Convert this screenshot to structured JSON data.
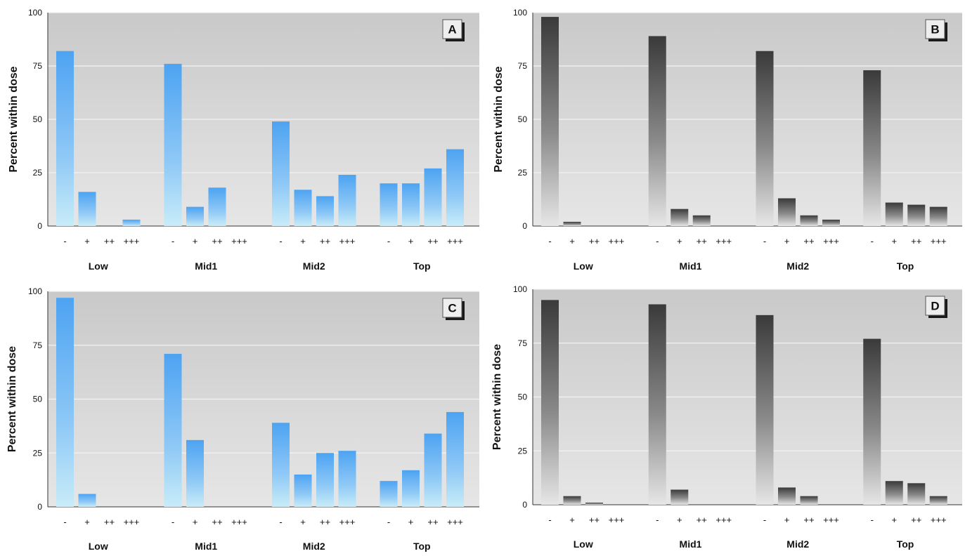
{
  "chart_data": [
    {
      "panel": "A",
      "type": "bar",
      "ylabel": "Percent within dose",
      "ylim": [
        0,
        100
      ],
      "yticks": [
        0,
        25,
        50,
        75,
        100
      ],
      "groups": [
        "Low",
        "Mid1",
        "Mid2",
        "Top"
      ],
      "categories": [
        "-",
        "+",
        "++",
        "+++"
      ],
      "values": [
        [
          82,
          16,
          0,
          3
        ],
        [
          76,
          9,
          18,
          0
        ],
        [
          49,
          17,
          14,
          24
        ],
        [
          20,
          20,
          27,
          36
        ]
      ],
      "color": "#5aaaf0"
    },
    {
      "panel": "B",
      "type": "bar",
      "ylabel": "Percent within dose",
      "ylim": [
        0,
        100
      ],
      "yticks": [
        0,
        25,
        50,
        75,
        100
      ],
      "groups": [
        "Low",
        "Mid1",
        "Mid2",
        "Top"
      ],
      "categories": [
        "-",
        "+",
        "++",
        "+++"
      ],
      "values": [
        [
          98,
          2,
          0,
          0
        ],
        [
          89,
          8,
          5,
          0
        ],
        [
          82,
          13,
          5,
          3
        ],
        [
          73,
          11,
          10,
          9
        ]
      ],
      "color": "#444444"
    },
    {
      "panel": "C",
      "type": "bar",
      "ylabel": "Percent within dose",
      "ylim": [
        0,
        100
      ],
      "yticks": [
        0,
        25,
        50,
        75,
        100
      ],
      "groups": [
        "Low",
        "Mid1",
        "Mid2",
        "Top"
      ],
      "categories": [
        "-",
        "+",
        "++",
        "+++"
      ],
      "values": [
        [
          97,
          6,
          0,
          0
        ],
        [
          71,
          31,
          0,
          0
        ],
        [
          39,
          15,
          25,
          26
        ],
        [
          12,
          17,
          34,
          44
        ]
      ],
      "color": "#5aaaf0"
    },
    {
      "panel": "D",
      "type": "bar",
      "ylabel": "Percent within dose",
      "ylim": [
        0,
        100
      ],
      "yticks": [
        0,
        25,
        50,
        75,
        100
      ],
      "groups": [
        "Low",
        "Mid1",
        "Mid2",
        "Top"
      ],
      "categories": [
        "-",
        "+",
        "++",
        "+++"
      ],
      "values": [
        [
          95,
          4,
          1,
          0
        ],
        [
          93,
          7,
          0,
          0
        ],
        [
          88,
          8,
          4,
          0
        ],
        [
          77,
          11,
          10,
          4
        ]
      ],
      "color": "#444444"
    }
  ]
}
